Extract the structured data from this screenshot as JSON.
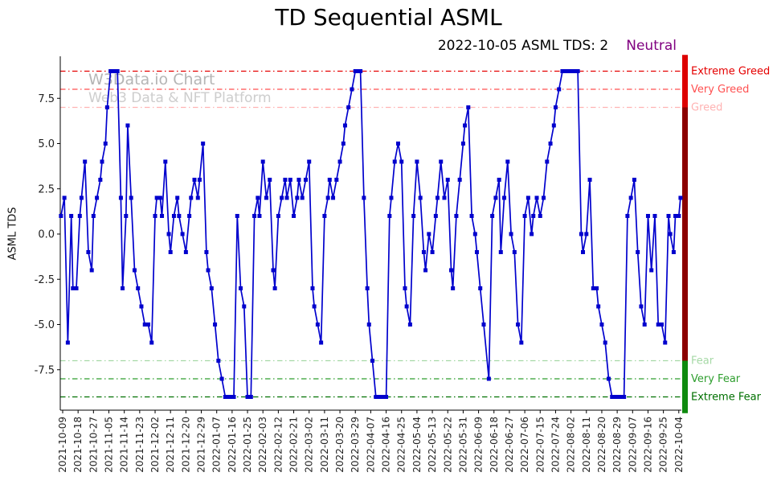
{
  "watermark": {
    "line1": "W3Data.io Chart",
    "line2": "Web3 Data & NFT Platform"
  },
  "chart_data": {
    "type": "line",
    "title": "TD Sequential ASML",
    "subtitle_text": "2022-10-05 ASML TDS: 2",
    "status": "Neutral",
    "status_color": "#800080",
    "ylabel": "ASML TDS",
    "ylim": [
      -9.9,
      9.9
    ],
    "grid": false,
    "legend_position": "none",
    "yticks": [
      "7.5",
      "5.0",
      "2.5",
      "0.0",
      "-2.5",
      "-5.0",
      "-7.5"
    ],
    "xtick_labels": [
      "2021-10-09",
      "2021-10-18",
      "2021-10-27",
      "2021-11-05",
      "2021-11-14",
      "2021-11-23",
      "2021-12-02",
      "2021-12-11",
      "2021-12-20",
      "2021-12-29",
      "2022-01-07",
      "2022-01-16",
      "2022-01-25",
      "2022-02-03",
      "2022-02-12",
      "2022-02-21",
      "2022-03-02",
      "2022-03-11",
      "2022-03-20",
      "2022-03-29",
      "2022-04-07",
      "2022-04-16",
      "2022-04-25",
      "2022-05-04",
      "2022-05-13",
      "2022-05-22",
      "2022-05-31",
      "2022-06-09",
      "2022-06-18",
      "2022-06-27",
      "2022-07-06",
      "2022-07-15",
      "2022-07-24",
      "2022-08-02",
      "2022-08-11",
      "2022-08-20",
      "2022-08-29",
      "2022-09-07",
      "2022-09-16",
      "2022-09-25",
      "2022-10-04"
    ],
    "x_range": [
      "2021-10-09",
      "2022-10-04"
    ],
    "thresholds": [
      {
        "value": 9,
        "label": "Extreme Greed",
        "color": "#e50000"
      },
      {
        "value": 8,
        "label": "Very Greed",
        "color": "#ff5050"
      },
      {
        "value": 7,
        "label": "Greed",
        "color": "#ffb3b3"
      },
      {
        "value": -7,
        "label": "Fear",
        "color": "#a6d9a6"
      },
      {
        "value": -8,
        "label": "Very Fear",
        "color": "#2e9e2e"
      },
      {
        "value": -9,
        "label": "Extreme Fear",
        "color": "#007000"
      }
    ],
    "colorbar": [
      {
        "from": 9.9,
        "to": 7,
        "color": "#dd0000"
      },
      {
        "from": 7,
        "to": -7,
        "color": "#8b0000"
      },
      {
        "from": -7,
        "to": -9.9,
        "color": "#0e8a0e"
      }
    ],
    "series": [
      {
        "name": "ASML TDS",
        "color": "#0000cd",
        "marker": "square",
        "points": [
          [
            "2021-10-08",
            1
          ],
          [
            "2021-10-10",
            2
          ],
          [
            "2021-10-12",
            -6
          ],
          [
            "2021-10-14",
            1
          ],
          [
            "2021-10-15",
            -3
          ],
          [
            "2021-10-17",
            -3
          ],
          [
            "2021-10-19",
            1
          ],
          [
            "2021-10-20",
            2
          ],
          [
            "2021-10-22",
            4
          ],
          [
            "2021-10-24",
            -1
          ],
          [
            "2021-10-26",
            -2
          ],
          [
            "2021-10-27",
            1
          ],
          [
            "2021-10-29",
            2
          ],
          [
            "2021-10-31",
            3
          ],
          [
            "2021-11-01",
            4
          ],
          [
            "2021-11-03",
            5
          ],
          [
            "2021-11-04",
            7
          ],
          [
            "2021-11-06",
            9
          ],
          [
            "2021-11-07",
            9
          ],
          [
            "2021-11-09",
            9
          ],
          [
            "2021-11-10",
            9
          ],
          [
            "2021-11-12",
            2
          ],
          [
            "2021-11-13",
            -3
          ],
          [
            "2021-11-15",
            1
          ],
          [
            "2021-11-16",
            6
          ],
          [
            "2021-11-18",
            2
          ],
          [
            "2021-11-20",
            -2
          ],
          [
            "2021-11-22",
            -3
          ],
          [
            "2021-11-24",
            -4
          ],
          [
            "2021-11-26",
            -5
          ],
          [
            "2021-11-28",
            -5
          ],
          [
            "2021-11-30",
            -6
          ],
          [
            "2021-12-02",
            1
          ],
          [
            "2021-12-03",
            2
          ],
          [
            "2021-12-05",
            2
          ],
          [
            "2021-12-06",
            1
          ],
          [
            "2021-12-08",
            4
          ],
          [
            "2021-12-10",
            0
          ],
          [
            "2021-12-11",
            -1
          ],
          [
            "2021-12-13",
            1
          ],
          [
            "2021-12-15",
            2
          ],
          [
            "2021-12-16",
            1
          ],
          [
            "2021-12-18",
            0
          ],
          [
            "2021-12-20",
            -1
          ],
          [
            "2021-12-22",
            1
          ],
          [
            "2021-12-23",
            2
          ],
          [
            "2021-12-25",
            3
          ],
          [
            "2021-12-27",
            2
          ],
          [
            "2021-12-28",
            3
          ],
          [
            "2021-12-30",
            5
          ],
          [
            "2022-01-01",
            -1
          ],
          [
            "2022-01-02",
            -2
          ],
          [
            "2022-01-04",
            -3
          ],
          [
            "2022-01-06",
            -5
          ],
          [
            "2022-01-08",
            -7
          ],
          [
            "2022-01-10",
            -8
          ],
          [
            "2022-01-12",
            -9
          ],
          [
            "2022-01-14",
            -9
          ],
          [
            "2022-01-15",
            -9
          ],
          [
            "2022-01-17",
            -9
          ],
          [
            "2022-01-19",
            1
          ],
          [
            "2022-01-21",
            -3
          ],
          [
            "2022-01-23",
            -4
          ],
          [
            "2022-01-25",
            -9
          ],
          [
            "2022-01-27",
            -9
          ],
          [
            "2022-01-29",
            1
          ],
          [
            "2022-01-31",
            2
          ],
          [
            "2022-02-01",
            1
          ],
          [
            "2022-02-03",
            4
          ],
          [
            "2022-02-05",
            2
          ],
          [
            "2022-02-07",
            3
          ],
          [
            "2022-02-09",
            -2
          ],
          [
            "2022-02-10",
            -3
          ],
          [
            "2022-02-12",
            1
          ],
          [
            "2022-02-14",
            2
          ],
          [
            "2022-02-16",
            3
          ],
          [
            "2022-02-17",
            2
          ],
          [
            "2022-02-19",
            3
          ],
          [
            "2022-02-21",
            1
          ],
          [
            "2022-02-23",
            2
          ],
          [
            "2022-02-24",
            3
          ],
          [
            "2022-02-26",
            2
          ],
          [
            "2022-02-28",
            3
          ],
          [
            "2022-03-02",
            4
          ],
          [
            "2022-03-04",
            -3
          ],
          [
            "2022-03-05",
            -4
          ],
          [
            "2022-03-07",
            -5
          ],
          [
            "2022-03-09",
            -6
          ],
          [
            "2022-03-11",
            1
          ],
          [
            "2022-03-13",
            2
          ],
          [
            "2022-03-14",
            3
          ],
          [
            "2022-03-16",
            2
          ],
          [
            "2022-03-18",
            3
          ],
          [
            "2022-03-20",
            4
          ],
          [
            "2022-03-22",
            5
          ],
          [
            "2022-03-23",
            6
          ],
          [
            "2022-03-25",
            7
          ],
          [
            "2022-03-27",
            8
          ],
          [
            "2022-03-29",
            9
          ],
          [
            "2022-03-30",
            9
          ],
          [
            "2022-04-01",
            9
          ],
          [
            "2022-04-03",
            2
          ],
          [
            "2022-04-05",
            -3
          ],
          [
            "2022-04-06",
            -5
          ],
          [
            "2022-04-08",
            -7
          ],
          [
            "2022-04-10",
            -9
          ],
          [
            "2022-04-12",
            -9
          ],
          [
            "2022-04-14",
            -9
          ],
          [
            "2022-04-16",
            -9
          ],
          [
            "2022-04-18",
            1
          ],
          [
            "2022-04-19",
            2
          ],
          [
            "2022-04-21",
            4
          ],
          [
            "2022-04-23",
            5
          ],
          [
            "2022-04-25",
            4
          ],
          [
            "2022-04-27",
            -3
          ],
          [
            "2022-04-28",
            -4
          ],
          [
            "2022-04-30",
            -5
          ],
          [
            "2022-05-02",
            1
          ],
          [
            "2022-05-04",
            4
          ],
          [
            "2022-05-06",
            2
          ],
          [
            "2022-05-08",
            -1
          ],
          [
            "2022-05-09",
            -2
          ],
          [
            "2022-05-11",
            0
          ],
          [
            "2022-05-13",
            -1
          ],
          [
            "2022-05-15",
            1
          ],
          [
            "2022-05-16",
            2
          ],
          [
            "2022-05-18",
            4
          ],
          [
            "2022-05-20",
            2
          ],
          [
            "2022-05-22",
            3
          ],
          [
            "2022-05-24",
            -2
          ],
          [
            "2022-05-25",
            -3
          ],
          [
            "2022-05-27",
            1
          ],
          [
            "2022-05-29",
            3
          ],
          [
            "2022-05-31",
            5
          ],
          [
            "2022-06-01",
            6
          ],
          [
            "2022-06-03",
            7
          ],
          [
            "2022-06-05",
            1
          ],
          [
            "2022-06-07",
            0
          ],
          [
            "2022-06-08",
            -1
          ],
          [
            "2022-06-10",
            -3
          ],
          [
            "2022-06-12",
            -5
          ],
          [
            "2022-06-15",
            -8
          ],
          [
            "2022-06-17",
            1
          ],
          [
            "2022-06-19",
            2
          ],
          [
            "2022-06-21",
            3
          ],
          [
            "2022-06-22",
            -1
          ],
          [
            "2022-06-24",
            2
          ],
          [
            "2022-06-26",
            4
          ],
          [
            "2022-06-28",
            0
          ],
          [
            "2022-06-30",
            -1
          ],
          [
            "2022-07-02",
            -5
          ],
          [
            "2022-07-04",
            -6
          ],
          [
            "2022-07-06",
            1
          ],
          [
            "2022-07-08",
            2
          ],
          [
            "2022-07-10",
            0
          ],
          [
            "2022-07-11",
            1
          ],
          [
            "2022-07-13",
            2
          ],
          [
            "2022-07-15",
            1
          ],
          [
            "2022-07-17",
            2
          ],
          [
            "2022-07-19",
            4
          ],
          [
            "2022-07-21",
            5
          ],
          [
            "2022-07-23",
            6
          ],
          [
            "2022-07-24",
            7
          ],
          [
            "2022-07-26",
            8
          ],
          [
            "2022-07-28",
            9
          ],
          [
            "2022-07-30",
            9
          ],
          [
            "2022-08-01",
            9
          ],
          [
            "2022-08-02",
            9
          ],
          [
            "2022-08-04",
            9
          ],
          [
            "2022-08-06",
            9
          ],
          [
            "2022-08-08",
            0
          ],
          [
            "2022-08-09",
            -1
          ],
          [
            "2022-08-11",
            0
          ],
          [
            "2022-08-13",
            3
          ],
          [
            "2022-08-15",
            -3
          ],
          [
            "2022-08-17",
            -3
          ],
          [
            "2022-08-18",
            -4
          ],
          [
            "2022-08-20",
            -5
          ],
          [
            "2022-08-22",
            -6
          ],
          [
            "2022-08-24",
            -8
          ],
          [
            "2022-08-26",
            -9
          ],
          [
            "2022-08-28",
            -9
          ],
          [
            "2022-08-30",
            -9
          ],
          [
            "2022-09-01",
            -9
          ],
          [
            "2022-09-02",
            -9
          ],
          [
            "2022-09-04",
            1
          ],
          [
            "2022-09-06",
            2
          ],
          [
            "2022-09-08",
            3
          ],
          [
            "2022-09-10",
            -1
          ],
          [
            "2022-09-12",
            -4
          ],
          [
            "2022-09-14",
            -5
          ],
          [
            "2022-09-16",
            1
          ],
          [
            "2022-09-18",
            -2
          ],
          [
            "2022-09-20",
            1
          ],
          [
            "2022-09-22",
            -5
          ],
          [
            "2022-09-24",
            -5
          ],
          [
            "2022-09-26",
            -6
          ],
          [
            "2022-09-28",
            1
          ],
          [
            "2022-09-29",
            0
          ],
          [
            "2022-10-01",
            -1
          ],
          [
            "2022-10-02",
            1
          ],
          [
            "2022-10-04",
            1
          ],
          [
            "2022-10-05",
            2
          ]
        ]
      }
    ]
  }
}
